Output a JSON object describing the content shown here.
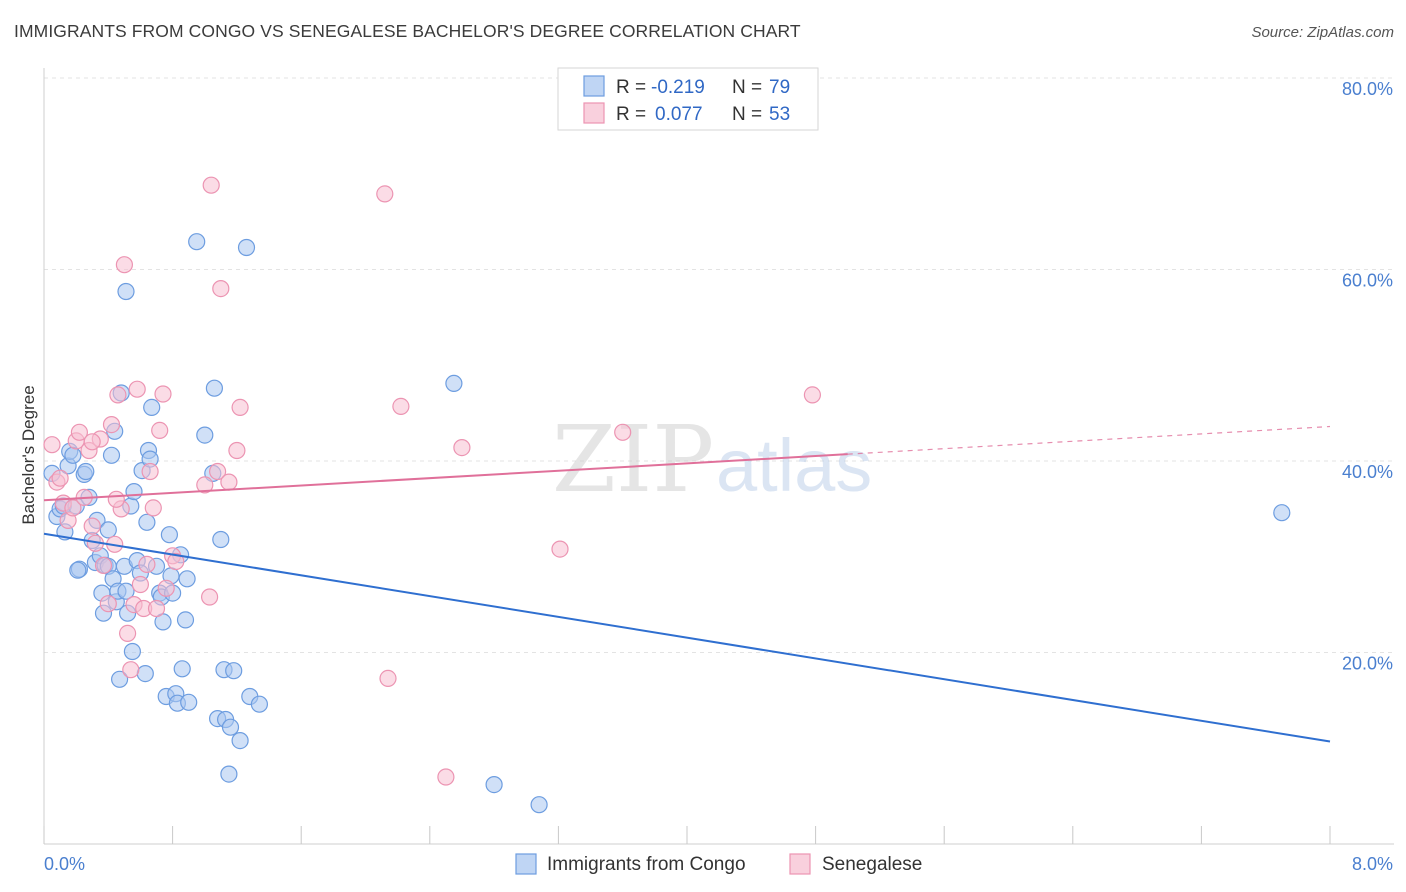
{
  "title": "IMMIGRANTS FROM CONGO VS SENEGALESE BACHELOR'S DEGREE CORRELATION CHART",
  "source": "Source: ZipAtlas.com",
  "watermark": {
    "part1": "ZIP",
    "part2": "atlas"
  },
  "colors": {
    "congo_fill": "#a9c7f0",
    "congo_stroke": "#6d9de0",
    "congo_line": "#2f6fd0",
    "sen_fill": "#f7c0d2",
    "sen_stroke": "#ec94b2",
    "sen_line": "#e0709a",
    "grid": "#e3e3e3",
    "tick_text": "#4a7fcf"
  },
  "stats": {
    "rows": [
      {
        "r_label": "R =",
        "r_value": "-0.219",
        "n_label": "N =",
        "n_value": "79"
      },
      {
        "r_label": "R =",
        "r_value": "0.077",
        "n_label": "N =",
        "n_value": "53"
      }
    ]
  },
  "chart_data": {
    "type": "scatter",
    "title": "IMMIGRANTS FROM CONGO VS SENEGALESE BACHELOR'S DEGREE CORRELATION CHART",
    "xlabel": "",
    "ylabel": "Bachelor's Degree",
    "xlim": [
      0,
      8
    ],
    "ylim": [
      0,
      80
    ],
    "x_tick_labels": [
      "0.0%",
      "8.0%"
    ],
    "y_ticks": [
      20,
      40,
      60,
      80
    ],
    "y_tick_labels": [
      "20.0%",
      "40.0%",
      "60.0%",
      "80.0%"
    ],
    "grid": true,
    "legend_position": "bottom",
    "series": [
      {
        "name": "Immigrants from Congo",
        "r": -0.219,
        "n": 79,
        "trend": {
          "x0": 0.0,
          "y0": 32.4,
          "x1": 8.0,
          "y1": 10.7,
          "dashed_from": null
        },
        "points": [
          [
            0.05,
            38.7
          ],
          [
            0.08,
            34.2
          ],
          [
            0.1,
            35.0
          ],
          [
            0.12,
            35.3
          ],
          [
            0.13,
            32.6
          ],
          [
            0.15,
            39.5
          ],
          [
            0.16,
            41.0
          ],
          [
            0.18,
            40.6
          ],
          [
            0.2,
            35.3
          ],
          [
            0.22,
            28.7
          ],
          [
            0.25,
            38.6
          ],
          [
            0.26,
            38.9
          ],
          [
            0.28,
            36.2
          ],
          [
            0.3,
            31.7
          ],
          [
            0.32,
            29.4
          ],
          [
            0.33,
            33.8
          ],
          [
            0.35,
            30.1
          ],
          [
            0.36,
            26.2
          ],
          [
            0.37,
            24.1
          ],
          [
            0.38,
            29.1
          ],
          [
            0.4,
            32.8
          ],
          [
            0.4,
            29.0
          ],
          [
            0.42,
            40.6
          ],
          [
            0.43,
            27.7
          ],
          [
            0.44,
            43.1
          ],
          [
            0.45,
            25.3
          ],
          [
            0.46,
            26.4
          ],
          [
            0.47,
            17.2
          ],
          [
            0.48,
            47.1
          ],
          [
            0.5,
            29.0
          ],
          [
            0.51,
            26.4
          ],
          [
            0.52,
            24.1
          ],
          [
            0.54,
            35.3
          ],
          [
            0.55,
            20.1
          ],
          [
            0.56,
            36.8
          ],
          [
            0.58,
            29.6
          ],
          [
            0.6,
            28.3
          ],
          [
            0.61,
            39.0
          ],
          [
            0.63,
            17.8
          ],
          [
            0.64,
            33.6
          ],
          [
            0.65,
            41.1
          ],
          [
            0.66,
            40.2
          ],
          [
            0.67,
            45.6
          ],
          [
            0.7,
            29.0
          ],
          [
            0.72,
            26.2
          ],
          [
            0.73,
            25.8
          ],
          [
            0.74,
            23.2
          ],
          [
            0.76,
            15.4
          ],
          [
            0.78,
            32.3
          ],
          [
            0.79,
            28.0
          ],
          [
            0.8,
            26.2
          ],
          [
            0.82,
            15.7
          ],
          [
            0.83,
            14.7
          ],
          [
            0.85,
            30.2
          ],
          [
            0.86,
            18.3
          ],
          [
            0.88,
            23.4
          ],
          [
            0.89,
            27.7
          ],
          [
            0.9,
            14.8
          ],
          [
            1.0,
            42.7
          ],
          [
            1.05,
            38.7
          ],
          [
            1.06,
            47.6
          ],
          [
            1.08,
            13.1
          ],
          [
            1.1,
            31.8
          ],
          [
            1.12,
            18.2
          ],
          [
            1.13,
            13.0
          ],
          [
            1.15,
            7.3
          ],
          [
            1.16,
            12.2
          ],
          [
            1.18,
            18.1
          ],
          [
            1.22,
            10.8
          ],
          [
            1.28,
            15.4
          ],
          [
            1.34,
            14.6
          ],
          [
            1.26,
            62.3
          ],
          [
            0.95,
            62.9
          ],
          [
            0.51,
            57.7
          ],
          [
            2.55,
            48.1
          ],
          [
            2.8,
            6.2
          ],
          [
            3.08,
            4.1
          ],
          [
            7.7,
            34.6
          ],
          [
            0.21,
            28.6
          ]
        ]
      },
      {
        "name": "Senegalese",
        "r": 0.077,
        "n": 53,
        "trend": {
          "x0": 0.0,
          "y0": 35.9,
          "x1": 8.0,
          "y1": 43.6,
          "dashed_from": 5.0
        },
        "points": [
          [
            0.05,
            41.7
          ],
          [
            0.08,
            37.8
          ],
          [
            0.1,
            38.2
          ],
          [
            0.12,
            35.6
          ],
          [
            0.15,
            33.8
          ],
          [
            0.18,
            35.1
          ],
          [
            0.2,
            42.1
          ],
          [
            0.22,
            43.0
          ],
          [
            0.25,
            36.2
          ],
          [
            0.28,
            41.1
          ],
          [
            0.3,
            33.2
          ],
          [
            0.32,
            31.4
          ],
          [
            0.35,
            42.3
          ],
          [
            0.37,
            29.1
          ],
          [
            0.4,
            25.1
          ],
          [
            0.42,
            43.8
          ],
          [
            0.44,
            31.3
          ],
          [
            0.46,
            46.9
          ],
          [
            0.48,
            35.0
          ],
          [
            0.5,
            60.5
          ],
          [
            0.52,
            22.0
          ],
          [
            0.54,
            18.2
          ],
          [
            0.56,
            25.0
          ],
          [
            0.58,
            47.5
          ],
          [
            0.6,
            27.1
          ],
          [
            0.62,
            24.6
          ],
          [
            0.64,
            29.2
          ],
          [
            0.66,
            38.9
          ],
          [
            0.68,
            35.1
          ],
          [
            0.7,
            24.6
          ],
          [
            0.72,
            43.2
          ],
          [
            0.74,
            47.0
          ],
          [
            0.76,
            26.7
          ],
          [
            0.8,
            30.1
          ],
          [
            0.82,
            29.5
          ],
          [
            1.03,
            25.8
          ],
          [
            1.0,
            37.5
          ],
          [
            1.08,
            38.9
          ],
          [
            1.1,
            58.0
          ],
          [
            1.15,
            37.8
          ],
          [
            1.2,
            41.1
          ],
          [
            1.22,
            45.6
          ],
          [
            1.04,
            68.8
          ],
          [
            2.12,
            67.9
          ],
          [
            2.22,
            45.7
          ],
          [
            2.14,
            17.3
          ],
          [
            2.5,
            7.0
          ],
          [
            2.6,
            41.4
          ],
          [
            3.21,
            30.8
          ],
          [
            3.6,
            43.0
          ],
          [
            4.78,
            46.9
          ],
          [
            0.3,
            42.0
          ],
          [
            0.45,
            36.0
          ]
        ]
      }
    ]
  },
  "legend": {
    "items": [
      {
        "label": "Immigrants from Congo"
      },
      {
        "label": "Senegalese"
      }
    ]
  }
}
